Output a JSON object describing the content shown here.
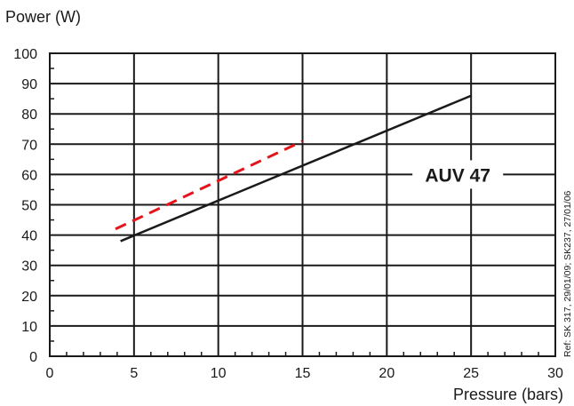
{
  "chart_data": {
    "type": "line",
    "ylabel": "Power (W)",
    "xlabel": "Pressure (bars)",
    "xlim": [
      0,
      30
    ],
    "ylim": [
      0,
      100
    ],
    "x_ticks": [
      0,
      5,
      10,
      15,
      20,
      25,
      30
    ],
    "y_ticks": [
      0,
      10,
      20,
      30,
      40,
      50,
      60,
      70,
      80,
      90,
      100
    ],
    "grid": true,
    "series": [
      {
        "name": "AUV 47",
        "style": "solid",
        "color": "#1a1a1a",
        "x": [
          4.2,
          25
        ],
        "y": [
          38,
          86
        ]
      },
      {
        "name": "",
        "style": "dashed",
        "color": "#e3141b",
        "x": [
          3.9,
          15
        ],
        "y": [
          42,
          71
        ]
      }
    ],
    "model_label": "AUV 47",
    "reference": "Ref: SK 317, 29/01/09; SK237, 27/01/06"
  }
}
